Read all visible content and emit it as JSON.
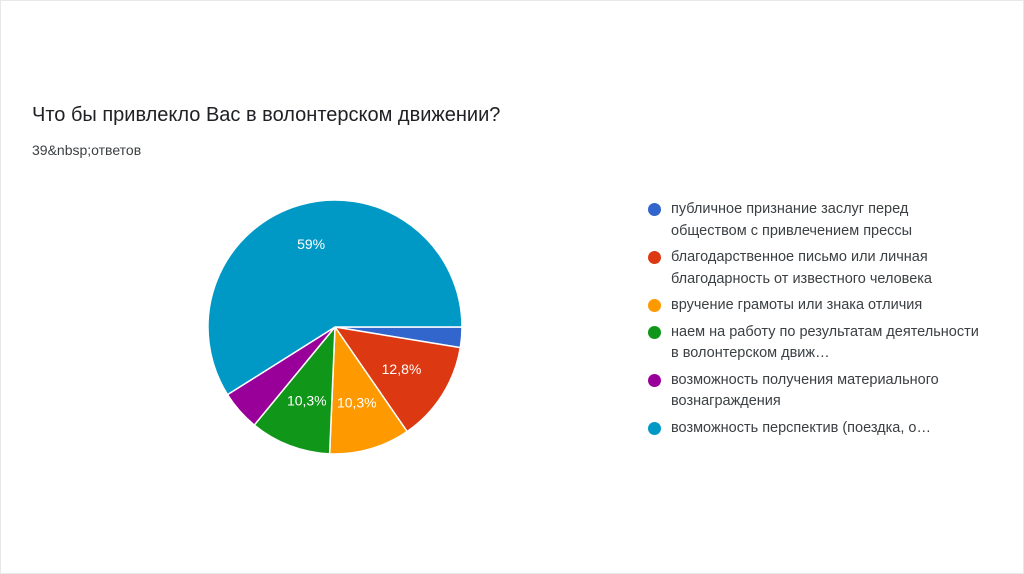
{
  "chart_data": {
    "type": "pie",
    "title": "Что бы привлекло Вас в волонтерском движении?",
    "subtitle": "39&nbsp;ответов",
    "legend_position": "right",
    "slices": [
      {
        "label": "публичное признание заслуг перед обществом с привлечением прессы",
        "value": 2.6,
        "display": "",
        "color": "#3366cc"
      },
      {
        "label": "благодарственное письмо или личная благодарность от известного человека",
        "value": 12.8,
        "display": "12,8%",
        "color": "#dc3912"
      },
      {
        "label": "вручение грамоты или знака отличия",
        "value": 10.3,
        "display": "10,3%",
        "color": "#ff9900"
      },
      {
        "label": "наем на работу по результатам деятельности в волонтерском движ…",
        "value": 10.3,
        "display": "10,3%",
        "color": "#109618"
      },
      {
        "label": "возможность получения материального вознаграждения",
        "value": 5.1,
        "display": "",
        "color": "#990099"
      },
      {
        "label": "возможность перспектив (поездка, о…",
        "value": 59,
        "display": "59%",
        "color": "#0099c6"
      }
    ]
  }
}
